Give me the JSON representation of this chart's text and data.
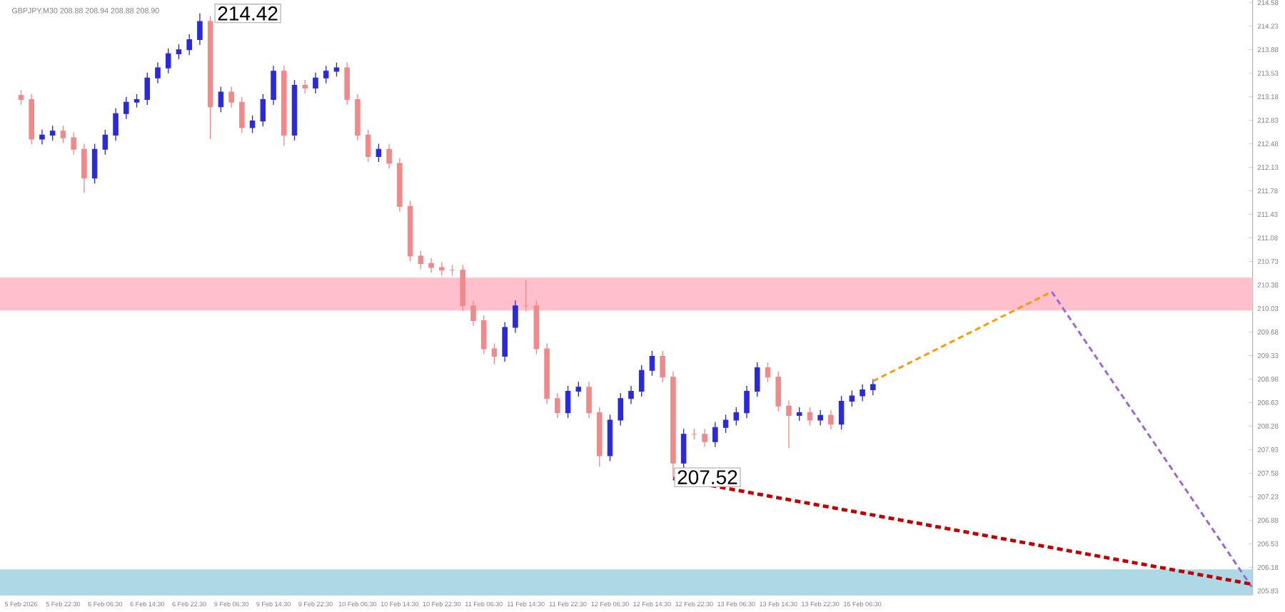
{
  "chart_data": {
    "type": "candlestick",
    "title": "GBPJPY,M30  208.88 208.94 208.88 208.90",
    "categories": [
      "5 Feb 2026",
      null,
      null,
      null,
      "5 Feb 22:30",
      null,
      null,
      null,
      "6 Feb 06:30",
      null,
      null,
      null,
      "6 Feb 14:30",
      null,
      null,
      null,
      "6 Feb 22:30",
      null,
      null,
      null,
      "9 Feb 06:30",
      null,
      null,
      null,
      "9 Feb 14:30",
      null,
      null,
      null,
      "9 Feb 22:30",
      null,
      null,
      null,
      "10 Feb 06:30",
      null,
      null,
      null,
      "10 Feb 14:30",
      null,
      null,
      null,
      "10 Feb 22:30",
      null,
      null,
      null,
      "11 Feb 06:30",
      null,
      null,
      null,
      "11 Feb 14:30",
      null,
      null,
      null,
      "11 Feb 22:30",
      null,
      null,
      null,
      "12 Feb 06:30",
      null,
      null,
      null,
      "12 Feb 14:30",
      null,
      null,
      null,
      "12 Feb 22:30",
      null,
      null,
      null,
      "13 Feb 06:30",
      null,
      null,
      null,
      "13 Feb 14:30",
      null,
      null,
      null,
      "13 Feb 22:30",
      null,
      null,
      null,
      "16 Feb 06:30",
      null,
      null,
      null,
      null,
      null,
      null,
      null,
      null,
      null,
      null,
      null,
      null,
      null,
      null,
      null,
      null,
      null,
      null,
      null,
      null,
      null,
      null,
      null,
      null,
      null,
      null,
      null,
      null,
      null,
      null,
      null,
      null,
      null,
      null,
      null,
      null,
      null
    ],
    "ohlc": [
      [
        213.2,
        213.28,
        213.06,
        213.14
      ],
      [
        213.14,
        213.22,
        212.47,
        212.55
      ],
      [
        212.55,
        212.69,
        212.47,
        212.61
      ],
      [
        212.61,
        212.75,
        212.53,
        212.67
      ],
      [
        212.67,
        212.75,
        212.49,
        212.57
      ],
      [
        212.57,
        212.65,
        212.32,
        212.4
      ],
      [
        212.4,
        212.48,
        211.75,
        211.97
      ],
      [
        211.97,
        212.48,
        211.89,
        212.4
      ],
      [
        212.4,
        212.69,
        212.32,
        212.61
      ],
      [
        212.61,
        213.01,
        212.53,
        212.93
      ],
      [
        212.93,
        213.18,
        212.85,
        213.1
      ],
      [
        213.1,
        213.22,
        213.02,
        213.14
      ],
      [
        213.14,
        213.54,
        213.06,
        213.46
      ],
      [
        213.46,
        213.69,
        213.38,
        213.61
      ],
      [
        213.61,
        213.9,
        213.53,
        213.82
      ],
      [
        213.82,
        213.96,
        213.74,
        213.88
      ],
      [
        213.88,
        214.11,
        213.8,
        214.03
      ],
      [
        214.03,
        214.42,
        213.95,
        214.3
      ],
      [
        214.3,
        214.38,
        212.55,
        213.03
      ],
      [
        213.03,
        213.33,
        212.95,
        213.25
      ],
      [
        213.25,
        213.33,
        213.02,
        213.1
      ],
      [
        213.1,
        213.18,
        212.64,
        212.72
      ],
      [
        212.72,
        212.9,
        212.64,
        212.82
      ],
      [
        212.82,
        213.22,
        212.74,
        213.14
      ],
      [
        213.14,
        213.64,
        213.06,
        213.56
      ],
      [
        213.56,
        213.64,
        212.45,
        212.61
      ],
      [
        212.61,
        213.43,
        212.53,
        213.35
      ],
      [
        213.35,
        213.43,
        213.23,
        213.31
      ],
      [
        213.31,
        213.54,
        213.23,
        213.46
      ],
      [
        213.46,
        213.64,
        213.38,
        213.56
      ],
      [
        213.56,
        213.69,
        213.48,
        213.61
      ],
      [
        213.61,
        213.69,
        213.06,
        213.14
      ],
      [
        213.14,
        213.22,
        212.53,
        212.61
      ],
      [
        212.61,
        212.69,
        212.21,
        212.29
      ],
      [
        212.29,
        212.48,
        212.21,
        212.4
      ],
      [
        212.4,
        212.48,
        212.11,
        212.19
      ],
      [
        212.19,
        212.27,
        211.47,
        211.55
      ],
      [
        211.55,
        211.63,
        210.73,
        210.81
      ],
      [
        210.81,
        210.89,
        210.62,
        210.7
      ],
      [
        210.7,
        210.78,
        210.56,
        210.64
      ],
      [
        210.64,
        210.72,
        210.52,
        210.6
      ],
      [
        210.6,
        210.68,
        210.52,
        210.6
      ],
      [
        210.6,
        210.68,
        209.99,
        210.07
      ],
      [
        210.07,
        210.15,
        209.77,
        209.85
      ],
      [
        209.85,
        209.93,
        209.35,
        209.43
      ],
      [
        209.43,
        209.51,
        209.2,
        209.32
      ],
      [
        209.32,
        209.83,
        209.24,
        209.75
      ],
      [
        209.75,
        210.15,
        209.67,
        210.07
      ],
      [
        210.07,
        210.45,
        209.99,
        210.07
      ],
      [
        210.07,
        210.15,
        209.35,
        209.43
      ],
      [
        209.43,
        209.51,
        208.61,
        208.69
      ],
      [
        208.69,
        208.77,
        208.4,
        208.48
      ],
      [
        208.48,
        208.88,
        208.4,
        208.8
      ],
      [
        208.8,
        208.94,
        208.72,
        208.86
      ],
      [
        208.86,
        208.94,
        208.4,
        208.48
      ],
      [
        208.48,
        208.56,
        207.68,
        207.84
      ],
      [
        207.84,
        208.45,
        207.76,
        208.37
      ],
      [
        208.37,
        208.77,
        208.29,
        208.69
      ],
      [
        208.69,
        208.88,
        208.61,
        208.8
      ],
      [
        208.8,
        209.19,
        208.72,
        209.11
      ],
      [
        209.11,
        209.4,
        209.03,
        209.32
      ],
      [
        209.32,
        209.4,
        208.93,
        209.01
      ],
      [
        209.01,
        209.09,
        207.52,
        207.73
      ],
      [
        207.73,
        208.24,
        207.65,
        208.16
      ],
      [
        208.16,
        208.24,
        208.08,
        208.16
      ],
      [
        208.16,
        208.24,
        207.97,
        208.05
      ],
      [
        208.05,
        208.34,
        207.97,
        208.26
      ],
      [
        208.26,
        208.45,
        208.18,
        208.37
      ],
      [
        208.37,
        208.56,
        208.29,
        208.48
      ],
      [
        208.48,
        208.88,
        208.4,
        208.8
      ],
      [
        208.8,
        209.23,
        208.72,
        209.15
      ],
      [
        209.15,
        209.23,
        208.93,
        209.01
      ],
      [
        209.01,
        209.09,
        208.5,
        208.58
      ],
      [
        208.58,
        208.66,
        207.95,
        208.44
      ],
      [
        208.44,
        208.56,
        208.36,
        208.48
      ],
      [
        208.48,
        208.56,
        208.29,
        208.37
      ],
      [
        208.37,
        208.52,
        208.29,
        208.44
      ],
      [
        208.44,
        208.52,
        208.23,
        208.31
      ],
      [
        208.31,
        208.73,
        208.23,
        208.65
      ],
      [
        208.65,
        208.81,
        208.57,
        208.73
      ],
      [
        208.73,
        208.9,
        208.65,
        208.82
      ],
      [
        208.82,
        208.98,
        208.74,
        208.9
      ],
      null,
      null,
      null,
      null,
      null,
      null,
      null,
      null,
      null,
      null,
      null,
      null,
      null,
      null,
      null,
      null,
      null,
      null,
      null,
      null,
      null,
      null,
      null,
      null,
      null,
      null,
      null,
      null,
      null,
      null,
      null,
      null,
      null,
      null,
      null,
      null
    ],
    "colors": [
      "#f08a8a",
      "#f08a8a",
      "#2a2ad8",
      "#2a2ad8",
      "#f08a8a",
      "#f08a8a",
      "#f08a8a",
      "#2a2ad8",
      "#2a2ad8",
      "#2a2ad8",
      "#2a2ad8",
      "#2a2ad8",
      "#2a2ad8",
      "#2a2ad8",
      "#2a2ad8",
      "#2a2ad8",
      "#2a2ad8",
      "#2a2ad8",
      "#f08a8a",
      "#2a2ad8",
      "#f08a8a",
      "#f08a8a",
      "#2a2ad8",
      "#2a2ad8",
      "#2a2ad8",
      "#f08a8a",
      "#2a2ad8",
      "#f08a8a",
      "#2a2ad8",
      "#2a2ad8",
      "#2a2ad8",
      "#f08a8a",
      "#f08a8a",
      "#f08a8a",
      "#2a2ad8",
      "#f08a8a",
      "#f08a8a",
      "#f08a8a",
      "#f08a8a",
      "#f08a8a",
      "#f08a8a",
      "#f08a8a",
      "#f08a8a",
      "#f08a8a",
      "#f08a8a",
      "#f08a8a",
      "#2a2ad8",
      "#2a2ad8",
      "#f08a8a",
      "#f08a8a",
      "#f08a8a",
      "#f08a8a",
      "#2a2ad8",
      "#2a2ad8",
      "#f08a8a",
      "#f08a8a",
      "#2a2ad8",
      "#2a2ad8",
      "#2a2ad8",
      "#2a2ad8",
      "#2a2ad8",
      "#f08a8a",
      "#f08a8a",
      "#2a2ad8",
      "#f08a8a",
      "#f08a8a",
      "#2a2ad8",
      "#2a2ad8",
      "#2a2ad8",
      "#2a2ad8",
      "#2a2ad8",
      "#f08a8a",
      "#f08a8a",
      "#f08a8a",
      "#2a2ad8",
      "#f08a8a",
      "#2a2ad8",
      "#f08a8a",
      "#2a2ad8",
      "#2a2ad8",
      "#2a2ad8",
      "#2a2ad8",
      null,
      null,
      null,
      null,
      null,
      null,
      null,
      null,
      null,
      null,
      null,
      null,
      null,
      null,
      null,
      null,
      null,
      null,
      null,
      null,
      null,
      null,
      null,
      null,
      null,
      null,
      null,
      null,
      null,
      null,
      null,
      null,
      null,
      null,
      null,
      null
    ],
    "series": [
      {
        "type": "line",
        "color": "#ff9900",
        "line_style": "dashed",
        "values": [
          null,
          null,
          null,
          null,
          null,
          null,
          null,
          null,
          null,
          null,
          null,
          null,
          null,
          null,
          null,
          null,
          null,
          null,
          null,
          null,
          null,
          null,
          null,
          null,
          null,
          null,
          null,
          null,
          null,
          null,
          null,
          null,
          null,
          null,
          null,
          null,
          null,
          null,
          null,
          null,
          null,
          null,
          null,
          null,
          null,
          null,
          null,
          null,
          null,
          null,
          null,
          null,
          null,
          null,
          null,
          null,
          null,
          null,
          null,
          null,
          null,
          null,
          null,
          null,
          null,
          null,
          null,
          null,
          null,
          null,
          null,
          null,
          null,
          null,
          null,
          null,
          null,
          null,
          null,
          null,
          null,
          208.95,
          null,
          null,
          null,
          null,
          null,
          null,
          null,
          null,
          null,
          null,
          null,
          null,
          null,
          null,
          null,
          null,
          210.28,
          null,
          null,
          null,
          null,
          null,
          null,
          null,
          null,
          null,
          null,
          null,
          null,
          null,
          null,
          null,
          null,
          null,
          null,
          null
        ]
      },
      {
        "type": "line",
        "color": "#9966dd",
        "line_style": "dashed",
        "values": [
          null,
          null,
          null,
          null,
          null,
          null,
          null,
          null,
          null,
          null,
          null,
          null,
          null,
          null,
          null,
          null,
          null,
          null,
          null,
          null,
          null,
          null,
          null,
          null,
          null,
          null,
          null,
          null,
          null,
          null,
          null,
          null,
          null,
          null,
          null,
          null,
          null,
          null,
          null,
          null,
          null,
          null,
          null,
          null,
          null,
          null,
          null,
          null,
          null,
          null,
          null,
          null,
          null,
          null,
          null,
          null,
          null,
          null,
          null,
          null,
          null,
          null,
          null,
          null,
          null,
          null,
          null,
          null,
          null,
          null,
          null,
          null,
          null,
          null,
          null,
          null,
          null,
          null,
          null,
          null,
          null,
          null,
          null,
          null,
          null,
          null,
          null,
          null,
          null,
          null,
          null,
          null,
          null,
          null,
          null,
          null,
          null,
          null,
          210.28,
          null,
          null,
          null,
          null,
          null,
          null,
          null,
          null,
          null,
          null,
          null,
          null,
          null,
          null,
          null,
          null,
          null,
          null,
          205.89
        ]
      },
      {
        "type": "line",
        "color": "#c00000",
        "line_style": "dashed",
        "values": [
          null,
          null,
          null,
          null,
          null,
          null,
          null,
          null,
          null,
          null,
          null,
          null,
          null,
          null,
          null,
          null,
          null,
          null,
          null,
          null,
          null,
          null,
          null,
          null,
          null,
          null,
          null,
          null,
          null,
          null,
          null,
          null,
          null,
          null,
          null,
          null,
          null,
          null,
          null,
          null,
          null,
          null,
          null,
          null,
          null,
          null,
          null,
          null,
          null,
          null,
          null,
          null,
          null,
          null,
          null,
          null,
          null,
          null,
          null,
          null,
          null,
          null,
          207.5,
          null,
          null,
          null,
          null,
          null,
          null,
          null,
          null,
          null,
          null,
          null,
          null,
          null,
          null,
          null,
          null,
          null,
          null,
          null,
          null,
          null,
          null,
          null,
          null,
          null,
          null,
          null,
          null,
          null,
          null,
          null,
          null,
          null,
          null,
          null,
          null,
          null,
          null,
          null,
          null,
          null,
          null,
          null,
          null,
          null,
          null,
          null,
          null,
          null,
          null,
          null,
          null,
          null,
          null,
          205.93
        ]
      }
    ],
    "bands": [
      {
        "axis": "y",
        "from": 210.0,
        "to": 210.49,
        "color": "#ffc0cb"
      },
      {
        "axis": "y",
        "from": 205.77,
        "to": 206.15,
        "color": "#add8e6"
      }
    ],
    "annotations": [
      "214.42",
      "207.52"
    ],
    "ylim": [
      205.77,
      214.62
    ],
    "yticks": [
      205.83,
      206.18,
      206.53,
      206.88,
      207.23,
      207.58,
      207.93,
      208.28,
      208.63,
      208.98,
      209.33,
      209.68,
      210.03,
      210.38,
      210.73,
      211.08,
      211.43,
      211.78,
      212.13,
      212.48,
      212.83,
      213.18,
      213.53,
      213.88,
      214.23,
      214.58
    ]
  }
}
